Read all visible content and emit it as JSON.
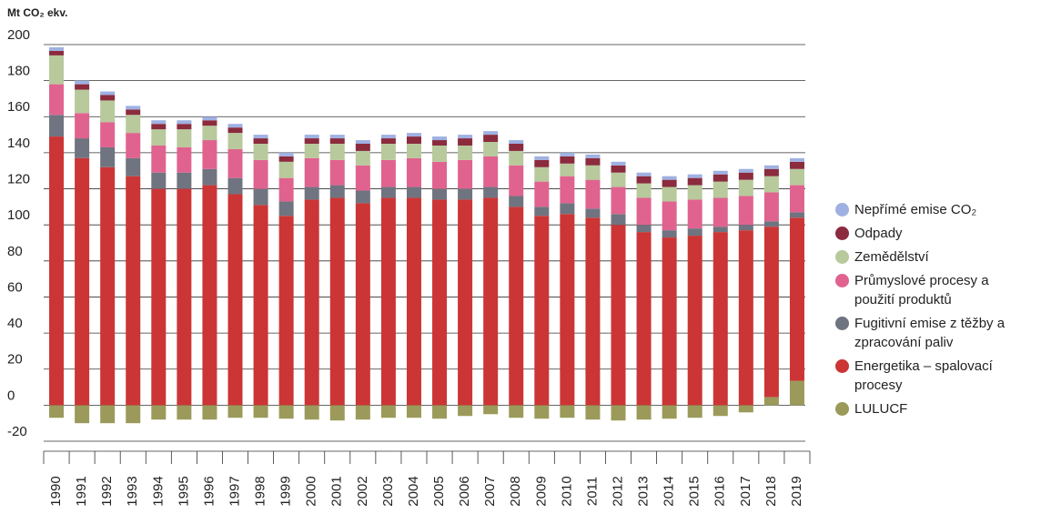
{
  "chart_data": {
    "type": "stacked-bar",
    "y_label": "Mt CO₂ ekv.",
    "categories": [
      "1990",
      "1991",
      "1992",
      "1993",
      "1994",
      "1995",
      "1996",
      "1997",
      "1998",
      "1999",
      "2000",
      "2001",
      "2002",
      "2003",
      "2004",
      "2005",
      "2006",
      "2007",
      "2008",
      "2009",
      "2010",
      "2011",
      "2012",
      "2013",
      "2014",
      "2015",
      "2016",
      "2017",
      "2018",
      "2019"
    ],
    "ylim": [
      -20,
      200
    ],
    "yticks": [
      -20,
      0,
      20,
      40,
      60,
      80,
      100,
      120,
      140,
      160,
      180,
      200
    ],
    "grid": true,
    "legend": "right",
    "series": [
      {
        "name": "LULUCF",
        "color": "#9b9a5a",
        "values": [
          -7,
          -10,
          -10,
          -10,
          -8,
          -8,
          -8,
          -7,
          -7,
          -7.5,
          -8,
          -8.5,
          -8,
          -7,
          -7,
          -7.5,
          -6,
          -5,
          -7,
          -7.5,
          -7,
          -8,
          -8.5,
          -8,
          -7.5,
          -7,
          -6,
          -4,
          4.5,
          13.5
        ]
      },
      {
        "name": "Energetika – spalovací procesy",
        "color": "#cc3535",
        "values": [
          149,
          137,
          132,
          127,
          120,
          120,
          122,
          117,
          111,
          105,
          114,
          115,
          112,
          115,
          115,
          114,
          114,
          115,
          110,
          105,
          106,
          104,
          100,
          96,
          93,
          94,
          96,
          97,
          94.5,
          90.5
        ]
      },
      {
        "name": "Fugitivní emise z těžby a zpracování paliv",
        "color": "#6f7480",
        "values": [
          12,
          11,
          11,
          10,
          9,
          9,
          9,
          9,
          9,
          8,
          7,
          7,
          7,
          6,
          6,
          6,
          6,
          6,
          6,
          5,
          6,
          5,
          6,
          4,
          4,
          4,
          3,
          3,
          3,
          3
        ]
      },
      {
        "name": "Průmyslové procesy a použití produktů",
        "color": "#e0638f",
        "values": [
          17,
          14,
          14,
          14,
          15,
          14,
          16,
          16,
          16,
          13,
          16,
          14,
          14,
          15,
          16,
          15,
          16,
          17,
          17,
          14,
          15,
          16,
          15,
          15,
          16,
          16,
          16,
          16,
          16,
          15
        ]
      },
      {
        "name": "Zemědělství",
        "color": "#b8c99c",
        "values": [
          16,
          13,
          12,
          10,
          9,
          10,
          8,
          9,
          9,
          9,
          8,
          9,
          8,
          9,
          8,
          9,
          8,
          8,
          8,
          8,
          7,
          8,
          8,
          8,
          8,
          8,
          9,
          9,
          9,
          9
        ]
      },
      {
        "name": "Odpady",
        "color": "#8b2b3d",
        "values": [
          2.5,
          3,
          3,
          3,
          3,
          3,
          3,
          3,
          3,
          3,
          3,
          3,
          4,
          3,
          4,
          3,
          4,
          4,
          4,
          4,
          4,
          4,
          4,
          4,
          4,
          4,
          4,
          4,
          4,
          4
        ]
      },
      {
        "name": "Nepřímé emise CO₂",
        "color": "#9fb1e2",
        "values": [
          2,
          2,
          2,
          2,
          2,
          2,
          2,
          2,
          2,
          2,
          2,
          2,
          2,
          2,
          2,
          2,
          2,
          2,
          2,
          2,
          2,
          2,
          2,
          2,
          2,
          2,
          2,
          2,
          2,
          2
        ]
      }
    ]
  }
}
